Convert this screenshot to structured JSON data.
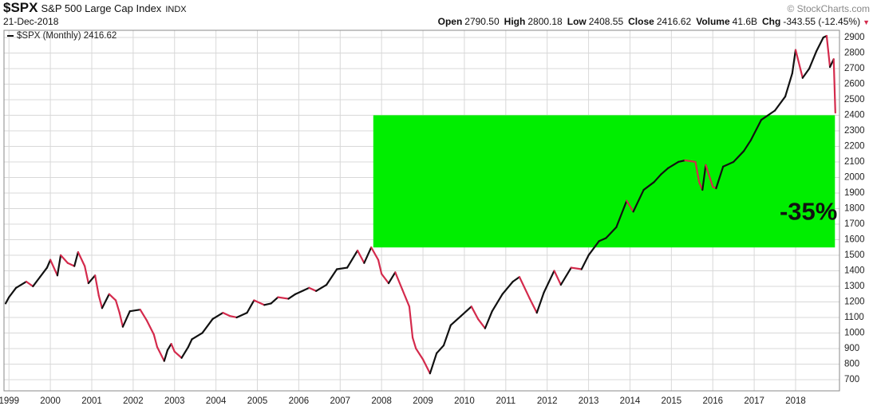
{
  "header": {
    "symbol": "$SPX",
    "name": "S&P 500 Large Cap Index",
    "exchange": "INDX",
    "date": "21-Dec-2018",
    "source": "© StockCharts.com",
    "stats": [
      {
        "label": "Open",
        "value": "2790.50"
      },
      {
        "label": "High",
        "value": "2800.18"
      },
      {
        "label": "Low",
        "value": "2408.55"
      },
      {
        "label": "Close",
        "value": "2416.62"
      },
      {
        "label": "Volume",
        "value": "41.6B"
      },
      {
        "label": "Chg",
        "value": "-343.55 (-12.45%)"
      }
    ]
  },
  "chart_data": {
    "type": "line",
    "x": [
      1998.92,
      1999.0,
      1999.17,
      1999.42,
      1999.58,
      1999.75,
      1999.92,
      2000.0,
      2000.17,
      2000.25,
      2000.42,
      2000.58,
      2000.67,
      2000.83,
      2000.92,
      2001.08,
      2001.17,
      2001.25,
      2001.42,
      2001.58,
      2001.67,
      2001.75,
      2001.92,
      2002.17,
      2002.33,
      2002.5,
      2002.58,
      2002.75,
      2002.83,
      2002.92,
      2003.0,
      2003.17,
      2003.33,
      2003.42,
      2003.67,
      2003.92,
      2004.17,
      2004.33,
      2004.5,
      2004.75,
      2004.92,
      2005.17,
      2005.33,
      2005.5,
      2005.75,
      2005.92,
      2006.25,
      2006.42,
      2006.67,
      2006.92,
      2007.17,
      2007.42,
      2007.58,
      2007.75,
      2007.92,
      2008.0,
      2008.17,
      2008.33,
      2008.5,
      2008.67,
      2008.75,
      2008.83,
      2009.0,
      2009.17,
      2009.33,
      2009.5,
      2009.67,
      2009.92,
      2010.17,
      2010.33,
      2010.5,
      2010.67,
      2010.92,
      2011.17,
      2011.33,
      2011.58,
      2011.75,
      2011.92,
      2012.17,
      2012.33,
      2012.58,
      2012.83,
      2013.0,
      2013.25,
      2013.42,
      2013.67,
      2013.92,
      2014.08,
      2014.33,
      2014.58,
      2014.75,
      2014.92,
      2015.17,
      2015.33,
      2015.58,
      2015.67,
      2015.75,
      2015.83,
      2016.0,
      2016.08,
      2016.25,
      2016.5,
      2016.75,
      2016.92,
      2017.17,
      2017.5,
      2017.75,
      2017.92,
      2018.0,
      2018.17,
      2018.33,
      2018.5,
      2018.67,
      2018.75,
      2018.83,
      2018.92,
      2018.96
    ],
    "series": [
      {
        "name": "$SPX (Monthly) 2416.62",
        "up_color": "#111111",
        "down_color": "#d42a4c",
        "values": [
          1190,
          1230,
          1290,
          1330,
          1300,
          1360,
          1420,
          1470,
          1370,
          1500,
          1450,
          1430,
          1520,
          1430,
          1320,
          1370,
          1240,
          1160,
          1250,
          1210,
          1130,
          1040,
          1140,
          1150,
          1080,
          990,
          910,
          820,
          890,
          930,
          880,
          840,
          910,
          960,
          1000,
          1090,
          1130,
          1110,
          1100,
          1130,
          1210,
          1180,
          1190,
          1230,
          1220,
          1250,
          1290,
          1270,
          1310,
          1410,
          1420,
          1530,
          1450,
          1550,
          1470,
          1380,
          1320,
          1390,
          1280,
          1170,
          970,
          900,
          830,
          740,
          870,
          920,
          1050,
          1110,
          1170,
          1090,
          1030,
          1140,
          1250,
          1330,
          1360,
          1220,
          1130,
          1260,
          1400,
          1310,
          1420,
          1410,
          1500,
          1590,
          1610,
          1680,
          1850,
          1780,
          1920,
          1970,
          2020,
          2060,
          2100,
          2110,
          2100,
          1970,
          1920,
          2080,
          1940,
          1930,
          2070,
          2100,
          2170,
          2240,
          2370,
          2430,
          2520,
          2670,
          2820,
          2640,
          2700,
          2810,
          2900,
          2910,
          2710,
          2760,
          2416.62
        ]
      }
    ],
    "xlim": [
      1998.88,
      2019.06
    ],
    "ylim": [
      628,
      2946
    ],
    "xticks": [
      1999,
      2000,
      2001,
      2002,
      2003,
      2004,
      2005,
      2006,
      2007,
      2008,
      2009,
      2010,
      2011,
      2012,
      2013,
      2014,
      2015,
      2016,
      2017,
      2018
    ],
    "yticks": [
      700,
      800,
      900,
      1000,
      1100,
      1200,
      1300,
      1400,
      1500,
      1600,
      1700,
      1800,
      1900,
      2000,
      2100,
      2200,
      2300,
      2400,
      2500,
      2600,
      2700,
      2800,
      2900
    ],
    "grid": true,
    "band": {
      "x0": 2007.8,
      "x1": 2018.95,
      "y0": 1550,
      "y1": 2400,
      "label": "-35%",
      "color": "#00ee00"
    }
  }
}
